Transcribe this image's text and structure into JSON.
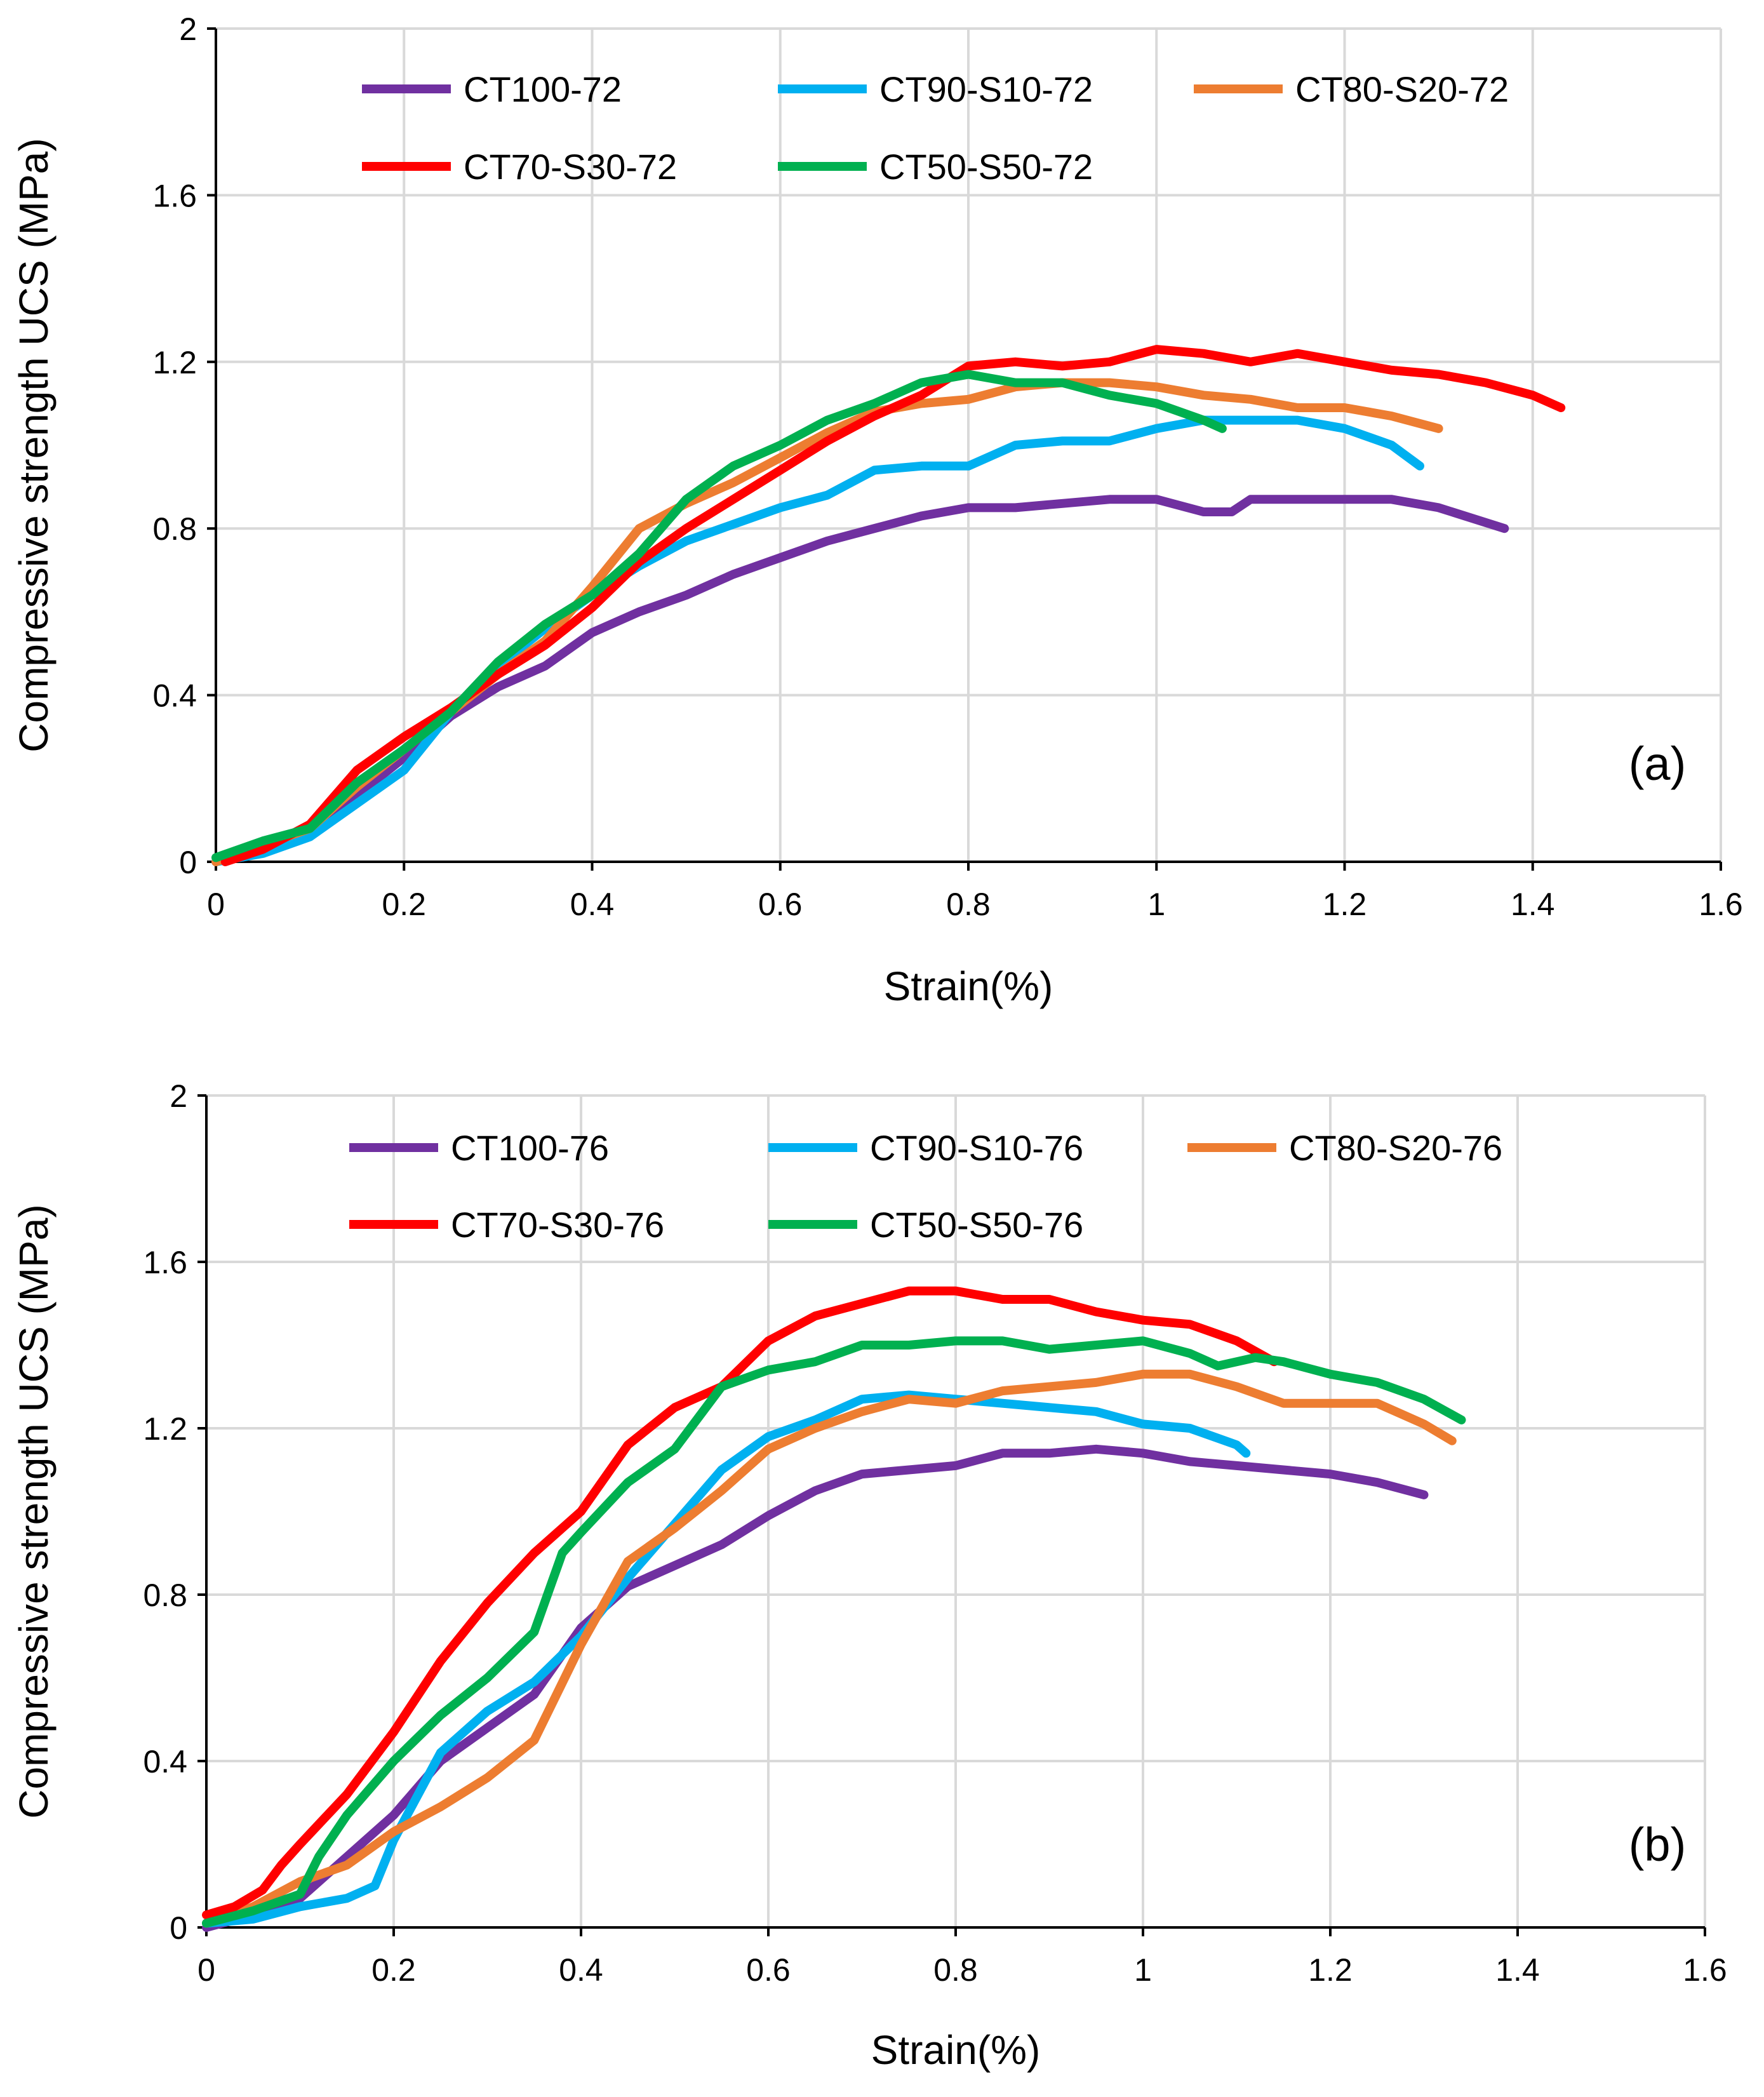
{
  "chart_data": [
    {
      "type": "line",
      "panel_label": "(a)",
      "xlabel": "Strain(%)",
      "ylabel": "Compressive strength UCS (MPa)",
      "xlim": [
        0,
        1.6
      ],
      "ylim": [
        0,
        2
      ],
      "xticks": [
        "0",
        "0.2",
        "0.4",
        "0.6",
        "0.8",
        "1",
        "1.2",
        "1.4",
        "1.6"
      ],
      "yticks": [
        "0",
        "0.4",
        "0.8",
        "1.2",
        "1.6",
        "2"
      ],
      "legend_position": "top",
      "series": [
        {
          "name": "CT100-72",
          "color": "#7030a0",
          "x": [
            0,
            0.05,
            0.1,
            0.15,
            0.2,
            0.25,
            0.3,
            0.35,
            0.4,
            0.45,
            0.5,
            0.55,
            0.6,
            0.65,
            0.7,
            0.75,
            0.8,
            0.85,
            0.9,
            0.95,
            1.0,
            1.05,
            1.08,
            1.1,
            1.15,
            1.2,
            1.25,
            1.3,
            1.37
          ],
          "y": [
            0,
            0.03,
            0.07,
            0.16,
            0.25,
            0.35,
            0.42,
            0.47,
            0.55,
            0.6,
            0.64,
            0.69,
            0.73,
            0.77,
            0.8,
            0.83,
            0.85,
            0.85,
            0.86,
            0.87,
            0.87,
            0.84,
            0.84,
            0.87,
            0.87,
            0.87,
            0.87,
            0.85,
            0.8
          ]
        },
        {
          "name": "CT90-S10-72",
          "color": "#00b0f0",
          "x": [
            0,
            0.05,
            0.1,
            0.15,
            0.2,
            0.25,
            0.3,
            0.35,
            0.4,
            0.45,
            0.5,
            0.55,
            0.6,
            0.65,
            0.7,
            0.75,
            0.8,
            0.85,
            0.9,
            0.95,
            1.0,
            1.05,
            1.1,
            1.15,
            1.2,
            1.25,
            1.28
          ],
          "y": [
            0,
            0.02,
            0.06,
            0.14,
            0.22,
            0.36,
            0.47,
            0.56,
            0.64,
            0.71,
            0.77,
            0.81,
            0.85,
            0.88,
            0.94,
            0.95,
            0.95,
            1.0,
            1.01,
            1.01,
            1.04,
            1.06,
            1.06,
            1.06,
            1.04,
            1.0,
            0.95
          ]
        },
        {
          "name": "CT80-S20-72",
          "color": "#ed7d31",
          "x": [
            0,
            0.05,
            0.1,
            0.15,
            0.2,
            0.25,
            0.3,
            0.35,
            0.4,
            0.45,
            0.5,
            0.55,
            0.6,
            0.65,
            0.7,
            0.75,
            0.8,
            0.85,
            0.9,
            0.95,
            1.0,
            1.05,
            1.1,
            1.15,
            1.2,
            1.25,
            1.3
          ],
          "y": [
            0,
            0.04,
            0.08,
            0.18,
            0.27,
            0.36,
            0.45,
            0.53,
            0.66,
            0.8,
            0.86,
            0.91,
            0.97,
            1.03,
            1.08,
            1.1,
            1.11,
            1.14,
            1.15,
            1.15,
            1.14,
            1.12,
            1.11,
            1.09,
            1.09,
            1.07,
            1.04
          ]
        },
        {
          "name": "CT70-S30-72",
          "color": "#ff0000",
          "x": [
            0.01,
            0.05,
            0.1,
            0.15,
            0.2,
            0.25,
            0.3,
            0.35,
            0.4,
            0.45,
            0.5,
            0.55,
            0.6,
            0.65,
            0.7,
            0.75,
            0.8,
            0.85,
            0.9,
            0.95,
            1.0,
            1.05,
            1.1,
            1.15,
            1.2,
            1.25,
            1.3,
            1.35,
            1.4,
            1.43
          ],
          "y": [
            0,
            0.03,
            0.09,
            0.22,
            0.3,
            0.37,
            0.45,
            0.52,
            0.61,
            0.72,
            0.8,
            0.87,
            0.94,
            1.01,
            1.07,
            1.12,
            1.19,
            1.2,
            1.19,
            1.2,
            1.23,
            1.22,
            1.2,
            1.22,
            1.2,
            1.18,
            1.17,
            1.15,
            1.12,
            1.09
          ]
        },
        {
          "name": "CT50-S50-72",
          "color": "#00b050",
          "x": [
            0,
            0.05,
            0.1,
            0.15,
            0.2,
            0.25,
            0.3,
            0.35,
            0.4,
            0.45,
            0.5,
            0.55,
            0.6,
            0.65,
            0.7,
            0.75,
            0.8,
            0.85,
            0.9,
            0.95,
            1.0,
            1.05,
            1.07
          ],
          "y": [
            0.01,
            0.05,
            0.08,
            0.19,
            0.27,
            0.36,
            0.48,
            0.57,
            0.64,
            0.74,
            0.87,
            0.95,
            1.0,
            1.06,
            1.1,
            1.15,
            1.17,
            1.15,
            1.15,
            1.12,
            1.1,
            1.06,
            1.04
          ]
        }
      ]
    },
    {
      "type": "line",
      "panel_label": "(b)",
      "xlabel": "Strain(%)",
      "ylabel": "Compressive strength UCS (MPa)",
      "xlim": [
        0,
        1.6
      ],
      "ylim": [
        0,
        2
      ],
      "xticks": [
        "0",
        "0.2",
        "0.4",
        "0.6",
        "0.8",
        "1",
        "1.2",
        "1.4",
        "1.6"
      ],
      "yticks": [
        "0",
        "0.4",
        "0.8",
        "1.2",
        "1.6",
        "2"
      ],
      "legend_position": "top",
      "series": [
        {
          "name": "CT100-76",
          "color": "#7030a0",
          "x": [
            0,
            0.05,
            0.1,
            0.15,
            0.2,
            0.25,
            0.3,
            0.35,
            0.4,
            0.45,
            0.5,
            0.55,
            0.6,
            0.65,
            0.7,
            0.75,
            0.8,
            0.85,
            0.9,
            0.95,
            1.0,
            1.05,
            1.1,
            1.15,
            1.2,
            1.25,
            1.3
          ],
          "y": [
            0,
            0.03,
            0.07,
            0.17,
            0.27,
            0.4,
            0.48,
            0.56,
            0.72,
            0.82,
            0.87,
            0.92,
            0.99,
            1.05,
            1.09,
            1.1,
            1.11,
            1.14,
            1.14,
            1.15,
            1.14,
            1.12,
            1.11,
            1.1,
            1.09,
            1.07,
            1.04
          ]
        },
        {
          "name": "CT90-S10-76",
          "color": "#00b0f0",
          "x": [
            0,
            0.05,
            0.1,
            0.15,
            0.18,
            0.2,
            0.25,
            0.3,
            0.35,
            0.4,
            0.45,
            0.5,
            0.55,
            0.6,
            0.65,
            0.7,
            0.75,
            0.8,
            0.85,
            0.9,
            0.95,
            1.0,
            1.05,
            1.1,
            1.11
          ],
          "y": [
            0.01,
            0.02,
            0.05,
            0.07,
            0.1,
            0.21,
            0.42,
            0.52,
            0.59,
            0.7,
            0.84,
            0.97,
            1.1,
            1.18,
            1.22,
            1.27,
            1.28,
            1.27,
            1.26,
            1.25,
            1.24,
            1.21,
            1.2,
            1.16,
            1.14
          ]
        },
        {
          "name": "CT80-S20-76",
          "color": "#ed7d31",
          "x": [
            0,
            0.05,
            0.1,
            0.15,
            0.2,
            0.25,
            0.3,
            0.35,
            0.4,
            0.45,
            0.5,
            0.55,
            0.6,
            0.65,
            0.7,
            0.75,
            0.8,
            0.85,
            0.9,
            0.95,
            1.0,
            1.05,
            1.1,
            1.15,
            1.2,
            1.25,
            1.3,
            1.33
          ],
          "y": [
            0.01,
            0.05,
            0.11,
            0.15,
            0.23,
            0.29,
            0.36,
            0.45,
            0.68,
            0.88,
            0.96,
            1.05,
            1.15,
            1.2,
            1.24,
            1.27,
            1.26,
            1.29,
            1.3,
            1.31,
            1.33,
            1.33,
            1.3,
            1.26,
            1.26,
            1.26,
            1.21,
            1.17
          ]
        },
        {
          "name": "CT70-S30-76",
          "color": "#ff0000",
          "x": [
            0,
            0.03,
            0.06,
            0.08,
            0.1,
            0.15,
            0.2,
            0.25,
            0.3,
            0.35,
            0.4,
            0.45,
            0.5,
            0.55,
            0.6,
            0.65,
            0.7,
            0.75,
            0.8,
            0.85,
            0.9,
            0.95,
            1.0,
            1.05,
            1.1,
            1.14
          ],
          "y": [
            0.03,
            0.05,
            0.09,
            0.15,
            0.2,
            0.32,
            0.47,
            0.64,
            0.78,
            0.9,
            1.0,
            1.16,
            1.25,
            1.3,
            1.41,
            1.47,
            1.5,
            1.53,
            1.53,
            1.51,
            1.51,
            1.48,
            1.46,
            1.45,
            1.41,
            1.36
          ]
        },
        {
          "name": "CT50-S50-76",
          "color": "#00b050",
          "x": [
            0,
            0.05,
            0.1,
            0.12,
            0.15,
            0.2,
            0.25,
            0.3,
            0.35,
            0.38,
            0.4,
            0.45,
            0.5,
            0.55,
            0.6,
            0.65,
            0.7,
            0.75,
            0.8,
            0.85,
            0.9,
            0.95,
            1.0,
            1.05,
            1.08,
            1.12,
            1.15,
            1.2,
            1.25,
            1.3,
            1.34
          ],
          "y": [
            0.01,
            0.04,
            0.08,
            0.17,
            0.27,
            0.4,
            0.51,
            0.6,
            0.71,
            0.9,
            0.95,
            1.07,
            1.15,
            1.3,
            1.34,
            1.36,
            1.4,
            1.4,
            1.41,
            1.41,
            1.39,
            1.4,
            1.41,
            1.38,
            1.35,
            1.37,
            1.36,
            1.33,
            1.31,
            1.27,
            1.22
          ]
        }
      ]
    }
  ]
}
